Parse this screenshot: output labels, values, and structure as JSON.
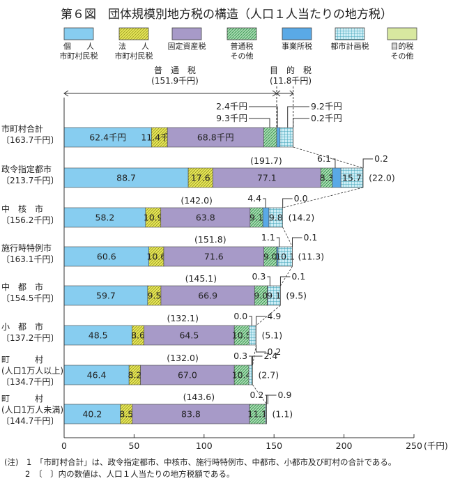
{
  "chart_data": {
    "type": "bar",
    "stacked": true,
    "orientation": "horizontal",
    "title": "第６図　団体規模別地方税の構造（人口１人当たりの地方税）",
    "unit_label": "(千円)",
    "xlim": [
      0,
      250
    ],
    "x_ticks": [
      "0",
      "50",
      "100",
      "150",
      "200",
      "250"
    ],
    "legend": [
      {
        "key": "kojin",
        "label_lines": [
          "個　　人",
          "市町村民税"
        ],
        "color": "#87cdf0",
        "pattern": "solid"
      },
      {
        "key": "houjin",
        "label_lines": [
          "法　　人",
          "市町村民税"
        ],
        "color": "#e6e65a",
        "pattern": "diag"
      },
      {
        "key": "kotei",
        "label_lines": [
          "固定資産税"
        ],
        "color": "#a79ac8",
        "pattern": "solid"
      },
      {
        "key": "futsu_other",
        "label_lines": [
          "普通税",
          "その他"
        ],
        "color": "#7cc08a",
        "pattern": "diag"
      },
      {
        "key": "jigyosho",
        "label_lines": [
          "事業所税"
        ],
        "color": "#5aa9e6",
        "pattern": "solid"
      },
      {
        "key": "toshi",
        "label_lines": [
          "都市計画税"
        ],
        "color": "#b6e3ee",
        "pattern": "grid"
      },
      {
        "key": "mokuteki_other",
        "label_lines": [
          "目的税",
          "その他"
        ],
        "color": "#d8e8a0",
        "pattern": "solid"
      }
    ],
    "bracket_futsu": {
      "label": "普　通　税",
      "value": "(151.9千円)"
    },
    "bracket_mokuteki": {
      "label": "目　的　税",
      "value": "(11.8千円)"
    },
    "categories": [
      {
        "label_lines": [
          "市町村合計",
          "〔163.7千円〕"
        ],
        "values": [
          62.4,
          11.4,
          68.8,
          9.3,
          2.4,
          9.2,
          0.2
        ],
        "inner_labels": [
          "62.4千円",
          "11.4千円",
          "68.8千円",
          "",
          "",
          "",
          ""
        ],
        "futsu_total": "",
        "mokuteki_total": "",
        "callouts": [
          "2.4千円",
          "9.3千円",
          "9.2千円",
          "0.2千円"
        ]
      },
      {
        "label_lines": [
          "政令指定都市",
          "〔213.7千円〕"
        ],
        "values": [
          88.7,
          17.6,
          77.1,
          8.3,
          6.1,
          15.7,
          0.2
        ],
        "inner_labels": [
          "88.7",
          "17.6",
          "77.1",
          "8.3",
          "",
          "15.7",
          ""
        ],
        "futsu_total": "(191.7)",
        "mokuteki_total": "(22.0)",
        "callouts": [
          "6.1",
          "0.2"
        ]
      },
      {
        "label_lines": [
          "中　核　市",
          "〔156.2千円〕"
        ],
        "values": [
          58.2,
          10.9,
          63.8,
          9.1,
          4.4,
          9.8,
          0.0
        ],
        "inner_labels": [
          "58.2",
          "10.9",
          "63.8",
          "9.1",
          "",
          "9.8",
          ""
        ],
        "futsu_total": "(142.0)",
        "mokuteki_total": "(14.2)",
        "callouts": [
          "4.4",
          "0.0"
        ]
      },
      {
        "label_lines": [
          "施行時特例市",
          "〔163.1千円〕"
        ],
        "values": [
          60.6,
          10.6,
          71.6,
          9.0,
          1.1,
          10.1,
          0.1
        ],
        "inner_labels": [
          "60.6",
          "10.6",
          "71.6",
          "9.0",
          "",
          "10.1",
          ""
        ],
        "futsu_total": "(151.8)",
        "mokuteki_total": "(11.3)",
        "callouts": [
          "1.1",
          "0.1"
        ]
      },
      {
        "label_lines": [
          "中　都　市",
          "〔154.5千円〕"
        ],
        "values": [
          59.7,
          9.5,
          66.9,
          9.0,
          0.3,
          9.1,
          0.1
        ],
        "inner_labels": [
          "59.7",
          "9.5",
          "66.9",
          "9.0",
          "",
          "9.1",
          ""
        ],
        "futsu_total": "(145.1)",
        "mokuteki_total": "(9.5)",
        "callouts": [
          "0.3",
          "0.1"
        ]
      },
      {
        "label_lines": [
          "小　都　市",
          "〔137.2千円〕"
        ],
        "values": [
          48.5,
          8.6,
          64.5,
          10.5,
          0.0,
          4.9,
          0.2
        ],
        "inner_labels": [
          "48.5",
          "8.6",
          "64.5",
          "10.5",
          "",
          "",
          ""
        ],
        "futsu_total": "(132.1)",
        "mokuteki_total": "(5.1)",
        "callouts": [
          "0.0",
          "4.9",
          "0.2"
        ]
      },
      {
        "label_lines": [
          "町　　　村",
          "(人口1万人以上)",
          "〔134.7千円〕"
        ],
        "values": [
          46.4,
          8.2,
          67.0,
          10.4,
          0.0,
          2.4,
          0.3
        ],
        "inner_labels": [
          "46.4",
          "8.2",
          "67.0",
          "10.4",
          "",
          "",
          ""
        ],
        "futsu_total": "(132.0)",
        "mokuteki_total": "(2.7)",
        "callouts": [
          "0.3",
          "2.4"
        ]
      },
      {
        "label_lines": [
          "町　　　村",
          "(人口1万人未満)",
          "〔144.7千円〕"
        ],
        "values": [
          40.2,
          8.5,
          83.8,
          11.1,
          0.0,
          0.9,
          0.2
        ],
        "inner_labels": [
          "40.2",
          "8.5",
          "83.8",
          "11.1",
          "",
          "",
          ""
        ],
        "futsu_total": "(143.6)",
        "mokuteki_total": "(1.1)",
        "callouts": [
          "0.2",
          "0.9"
        ]
      }
    ],
    "notes": [
      "(注)　1　「市町村合計」は、政令指定都市、中核市、施行時特例市、中都市、小都市及び町村の合計である。",
      "2　〔　〕内の数値は、人口１人当たりの地方税額である。"
    ]
  }
}
